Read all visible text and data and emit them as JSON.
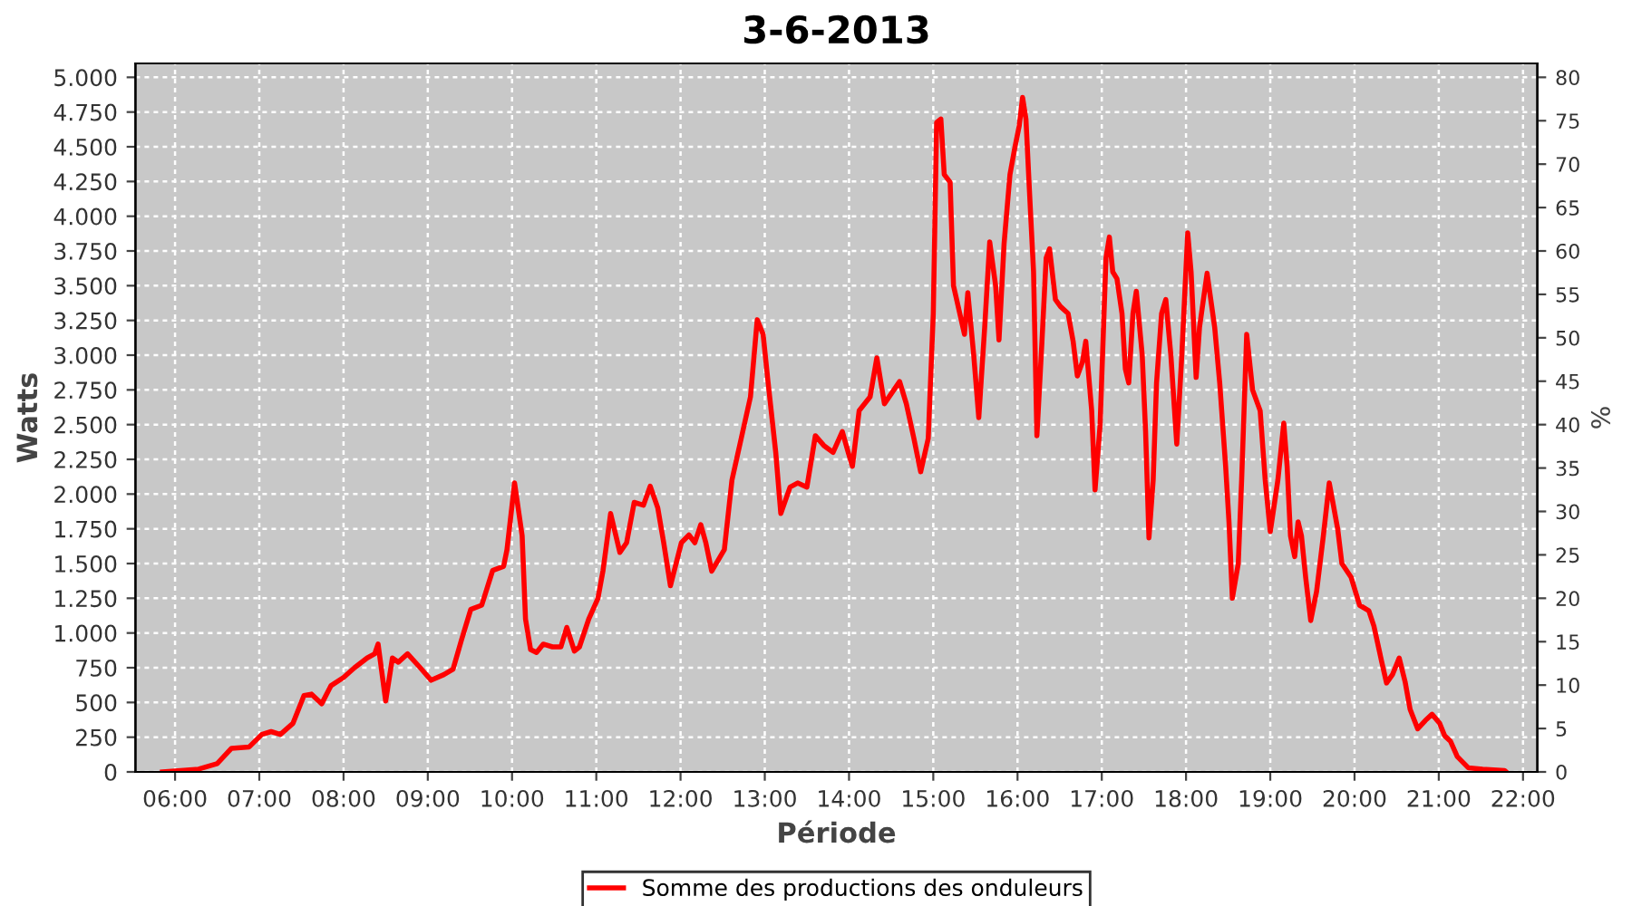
{
  "chart_data": {
    "type": "line",
    "title": "3-6-2013",
    "xlabel": "Période",
    "ylabel": "Watts",
    "y2label": "%",
    "x": [
      5.85,
      6.28,
      6.5,
      6.67,
      6.88,
      7.03,
      7.14,
      7.25,
      7.4,
      7.53,
      7.62,
      7.74,
      7.85,
      8.0,
      8.13,
      8.28,
      8.37,
      8.41,
      8.5,
      8.58,
      8.65,
      8.76,
      8.91,
      9.04,
      9.19,
      9.3,
      9.4,
      9.51,
      9.64,
      9.77,
      9.9,
      9.94,
      10.03,
      10.12,
      10.16,
      10.22,
      10.29,
      10.37,
      10.48,
      10.58,
      10.65,
      10.74,
      10.8,
      10.91,
      11.02,
      11.08,
      11.17,
      11.28,
      11.36,
      11.45,
      11.56,
      11.64,
      11.73,
      11.8,
      11.88,
      12.01,
      12.1,
      12.17,
      12.24,
      12.3,
      12.37,
      12.52,
      12.61,
      12.72,
      12.83,
      12.91,
      12.98,
      13.04,
      13.13,
      13.19,
      13.3,
      13.39,
      13.5,
      13.6,
      13.7,
      13.81,
      13.92,
      13.99,
      14.04,
      14.12,
      14.25,
      14.33,
      14.42,
      14.6,
      14.68,
      14.77,
      14.85,
      14.94,
      15.0,
      15.04,
      15.09,
      15.13,
      15.2,
      15.24,
      15.37,
      15.41,
      15.48,
      15.54,
      15.61,
      15.67,
      15.74,
      15.78,
      15.84,
      15.91,
      15.97,
      16.02,
      16.06,
      16.1,
      16.14,
      16.19,
      16.23,
      16.29,
      16.34,
      16.38,
      16.45,
      16.51,
      16.6,
      16.66,
      16.71,
      16.77,
      16.81,
      16.88,
      16.92,
      16.98,
      17.05,
      17.09,
      17.13,
      17.18,
      17.24,
      17.28,
      17.32,
      17.37,
      17.41,
      17.48,
      17.52,
      17.56,
      17.61,
      17.65,
      17.71,
      17.76,
      17.82,
      17.89,
      17.95,
      18.02,
      18.06,
      18.12,
      18.16,
      18.25,
      18.34,
      18.4,
      18.47,
      18.51,
      18.55,
      18.62,
      18.66,
      18.72,
      18.79,
      18.88,
      18.94,
      19.0,
      19.09,
      19.16,
      19.2,
      19.24,
      19.29,
      19.33,
      19.37,
      19.42,
      19.48,
      19.55,
      19.63,
      19.7,
      19.74,
      19.8,
      19.85,
      19.96,
      20.06,
      20.17,
      20.23,
      20.32,
      20.38,
      20.45,
      20.53,
      20.6,
      20.66,
      20.75,
      20.84,
      20.92,
      21.01,
      21.07,
      21.14,
      21.22,
      21.35,
      21.52,
      21.78,
      21.8
    ],
    "series": [
      {
        "name": "Somme des productions des onduleurs",
        "color": "#ff0000",
        "values": [
          0,
          20,
          60,
          170,
          180,
          270,
          290,
          270,
          350,
          550,
          560,
          490,
          620,
          680,
          750,
          820,
          850,
          920,
          510,
          820,
          790,
          850,
          750,
          660,
          700,
          740,
          950,
          1170,
          1200,
          1450,
          1480,
          1600,
          2080,
          1700,
          1100,
          880,
          860,
          920,
          900,
          900,
          1040,
          870,
          900,
          1100,
          1250,
          1450,
          1860,
          1580,
          1650,
          1940,
          1920,
          2057,
          1900,
          1650,
          1340,
          1650,
          1705,
          1650,
          1780,
          1650,
          1445,
          1600,
          2100,
          2400,
          2700,
          3255,
          3150,
          2800,
          2300,
          1860,
          2050,
          2080,
          2050,
          2420,
          2350,
          2300,
          2450,
          2300,
          2200,
          2600,
          2700,
          2980,
          2650,
          2810,
          2650,
          2400,
          2160,
          2400,
          3300,
          4675,
          4700,
          4300,
          4245,
          3500,
          3150,
          3450,
          3000,
          2550,
          3200,
          3815,
          3500,
          3110,
          3800,
          4300,
          4500,
          4650,
          4855,
          4700,
          4200,
          3600,
          2420,
          3100,
          3700,
          3765,
          3400,
          3350,
          3300,
          3100,
          2850,
          2950,
          3100,
          2600,
          2030,
          2500,
          3700,
          3850,
          3600,
          3550,
          3300,
          2900,
          2800,
          3300,
          3460,
          3000,
          2450,
          1685,
          2100,
          2800,
          3300,
          3400,
          3000,
          2360,
          3000,
          3880,
          3600,
          2840,
          3200,
          3590,
          3200,
          2800,
          2200,
          1800,
          1250,
          1500,
          2100,
          3150,
          2750,
          2600,
          2100,
          1730,
          2100,
          2510,
          2200,
          1700,
          1550,
          1800,
          1700,
          1400,
          1090,
          1300,
          1700,
          2080,
          1950,
          1750,
          1500,
          1400,
          1200,
          1160,
          1050,
          800,
          640,
          700,
          820,
          650,
          450,
          310,
          370,
          415,
          350,
          260,
          220,
          110,
          30,
          20,
          10,
          0
        ]
      }
    ],
    "xlim": [
      5.53,
      22.17
    ],
    "xticks": [
      {
        "value": 6,
        "label": "06:00"
      },
      {
        "value": 7,
        "label": "07:00"
      },
      {
        "value": 8,
        "label": "08:00"
      },
      {
        "value": 9,
        "label": "09:00"
      },
      {
        "value": 10,
        "label": "10:00"
      },
      {
        "value": 11,
        "label": "11:00"
      },
      {
        "value": 12,
        "label": "12:00"
      },
      {
        "value": 13,
        "label": "13:00"
      },
      {
        "value": 14,
        "label": "14:00"
      },
      {
        "value": 15,
        "label": "15:00"
      },
      {
        "value": 16,
        "label": "16:00"
      },
      {
        "value": 17,
        "label": "17:00"
      },
      {
        "value": 18,
        "label": "18:00"
      },
      {
        "value": 19,
        "label": "19:00"
      },
      {
        "value": 20,
        "label": "20:00"
      },
      {
        "value": 21,
        "label": "21:00"
      },
      {
        "value": 22,
        "label": "22:00"
      }
    ],
    "ylim": [
      0,
      5100
    ],
    "yticks": [
      0,
      250,
      500,
      750,
      {
        "value": 1000,
        "label": "1.000"
      },
      {
        "value": 1250,
        "label": "1.250"
      },
      {
        "value": 1500,
        "label": "1.500"
      },
      {
        "value": 1750,
        "label": "1.750"
      },
      {
        "value": 2000,
        "label": "2.000"
      },
      {
        "value": 2250,
        "label": "2.250"
      },
      {
        "value": 2500,
        "label": "2.500"
      },
      {
        "value": 2750,
        "label": "2.750"
      },
      {
        "value": 3000,
        "label": "3.000"
      },
      {
        "value": 3250,
        "label": "3.250"
      },
      {
        "value": 3500,
        "label": "3.500"
      },
      {
        "value": 3750,
        "label": "3.750"
      },
      {
        "value": 4000,
        "label": "4.000"
      },
      {
        "value": 4250,
        "label": "4.250"
      },
      {
        "value": 4500,
        "label": "4.500"
      },
      {
        "value": 4750,
        "label": "4.750"
      },
      {
        "value": 5000,
        "label": "5.000"
      }
    ],
    "y2lim": [
      0,
      81.6
    ],
    "y2ticks": [
      0,
      5,
      10,
      15,
      20,
      25,
      30,
      35,
      40,
      45,
      50,
      55,
      60,
      65,
      70,
      75,
      80
    ],
    "grid": true,
    "legend": "bottom",
    "marker": "none",
    "line_style": "solid"
  }
}
